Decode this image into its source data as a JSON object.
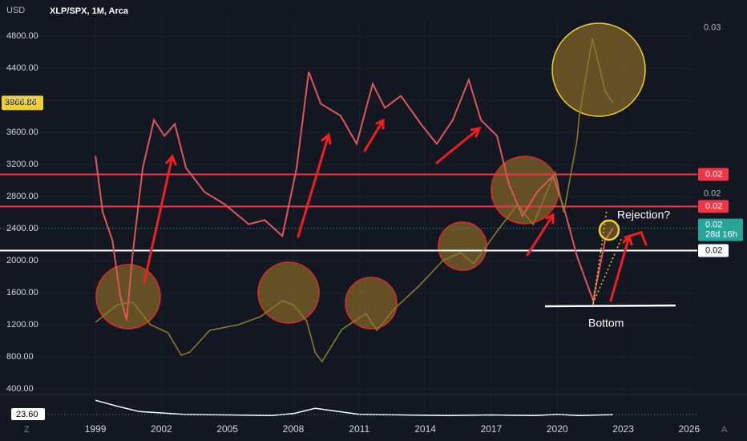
{
  "chart_data": {
    "type": "line",
    "title": "XLP/SPX, 1M, Arca",
    "y_axis_label": "USD",
    "xlim": [
      1994.66,
      2026.37
    ],
    "xticks": [
      1999,
      2002,
      2005,
      2008,
      2011,
      2014,
      2017,
      2020,
      2023,
      2026
    ],
    "ylim": [
      350,
      5050
    ],
    "yticks": [
      {
        "value": 400,
        "label": "400.00"
      },
      {
        "value": 800,
        "label": "800.00"
      },
      {
        "value": 1200,
        "label": "1200.00"
      },
      {
        "value": 1600,
        "label": "1600.00"
      },
      {
        "value": 2000,
        "label": "2000.00"
      },
      {
        "value": 2400,
        "label": "2400.00"
      },
      {
        "value": 2800,
        "label": "2800.00"
      },
      {
        "value": 3200,
        "label": "3200.00"
      },
      {
        "value": 3600,
        "label": "3600.00"
      },
      {
        "value": 4000,
        "label": "4000.00"
      },
      {
        "value": 4400,
        "label": "4400.00"
      },
      {
        "value": 4800,
        "label": "4800.00"
      }
    ],
    "y2lim": [
      0.008,
      0.0307
    ],
    "y2ticks": [
      0.02,
      0.03
    ],
    "series": [
      {
        "name": "XLP/SPX",
        "color": "#e0565b",
        "axis": "y2",
        "x": [
          1999.0,
          1999.33,
          1999.77,
          2000.13,
          2000.42,
          2000.68,
          2001.15,
          2001.66,
          2002.14,
          2002.61,
          2003.12,
          2003.96,
          2004.87,
          2005.97,
          2006.7,
          2007.5,
          2008.15,
          2008.7,
          2009.25,
          2010.15,
          2010.88,
          2011.61,
          2012.16,
          2012.89,
          2013.8,
          2014.52,
          2015.25,
          2015.98,
          2016.53,
          2017.26,
          2017.8,
          2018.42,
          2019.08,
          2019.81,
          2020.36,
          2020.9,
          2021.63,
          2022.18,
          2022.54
        ],
        "values": [
          0.02227,
          0.01889,
          0.0172,
          0.01382,
          0.01237,
          0.01623,
          0.02155,
          0.02444,
          0.02348,
          0.0242,
          0.02155,
          0.0201,
          0.01937,
          0.01816,
          0.01841,
          0.01744,
          0.02155,
          0.02734,
          0.02541,
          0.02469,
          0.023,
          0.02662,
          0.02517,
          0.02589,
          0.0242,
          0.023,
          0.02444,
          0.02686,
          0.02444,
          0.02348,
          0.02058,
          0.01865,
          0.0201,
          0.02106,
          0.01889,
          0.01623,
          0.01357,
          0.0172,
          0.01792
        ]
      },
      {
        "name": "SPX",
        "color": "#8a7a2e",
        "x": [
          1999.0,
          2000.0,
          2000.7,
          2001.5,
          2002.3,
          2002.9,
          2003.3,
          2004.2,
          2005.5,
          2006.5,
          2007.5,
          2008.0,
          2008.6,
          2009.0,
          2009.3,
          2010.2,
          2011.3,
          2011.8,
          2012.6,
          2013.7,
          2014.8,
          2015.6,
          2016.2,
          2017.3,
          2018.2,
          2018.9,
          2019.9,
          2020.3,
          2020.9,
          2021.0,
          2021.6,
          2022.2,
          2022.54
        ],
        "values": [
          1230,
          1450,
          1480,
          1200,
          1100,
          820,
          860,
          1130,
          1200,
          1300,
          1500,
          1450,
          1250,
          850,
          740,
          1140,
          1340,
          1130,
          1400,
          1680,
          2000,
          2100,
          1960,
          2380,
          2700,
          2450,
          3100,
          2600,
          3500,
          3800,
          4770,
          4100,
          3966.86
        ]
      }
    ],
    "levels": [
      {
        "value": 0.02116,
        "label": "0.02",
        "color": "#f23645"
      },
      {
        "value": 0.01923,
        "label": "0.02",
        "color": "#f23645"
      },
      {
        "value": 0.01657,
        "label": "0.02",
        "color": "#ffffff"
      }
    ],
    "current_value": {
      "value": 0.01792,
      "label": "0.02",
      "color": "#26a69a"
    },
    "countdown": "28d 16h",
    "annotations": [
      "Rejection?",
      "Bottom"
    ],
    "indicator": {
      "color": "#ffffff",
      "ylim": [
        20,
        50
      ],
      "x": [
        1999,
        2000,
        2001,
        2002,
        2003,
        2005,
        2007,
        2008,
        2009,
        2011,
        2013,
        2015,
        2017,
        2019,
        2020,
        2021,
        2022,
        2022.54
      ],
      "values": [
        45,
        36,
        28,
        26,
        24,
        23,
        22,
        25,
        33,
        24,
        23,
        22,
        23,
        22,
        24,
        22,
        23,
        23.6
      ],
      "current": {
        "value": 23.6,
        "label": "23.60"
      }
    }
  },
  "ui": {
    "left_icon": "Z",
    "right_icon": "A"
  }
}
